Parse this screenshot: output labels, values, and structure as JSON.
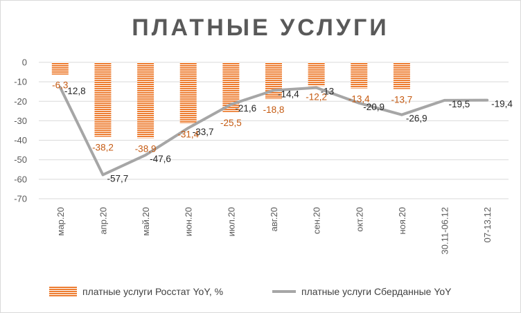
{
  "chart_data": {
    "type": "bar+line",
    "title": "ПЛАТНЫЕ УСЛУГИ",
    "categories": [
      "мар.20",
      "апр.20",
      "май.20",
      "июн.20",
      "июл.20",
      "авг.20",
      "сен.20",
      "окт.20",
      "ноя.20",
      "30.11-06.12",
      "07-13.12"
    ],
    "series": [
      {
        "name": "платные услуги Росстат YoY, %",
        "type": "bar",
        "color": "#ED7D31",
        "values": [
          -6.3,
          -38.2,
          -38.9,
          -31.4,
          -25.5,
          -18.8,
          -12.2,
          -13.4,
          -13.7,
          null,
          null
        ],
        "labels": [
          "-6,3",
          "-38,2",
          "-38,9",
          "-31,4",
          "-25,5",
          "-18,8",
          "-12,2",
          "-13,4",
          "-13,7",
          "",
          ""
        ]
      },
      {
        "name": "платные услуги Сберданные YoY",
        "type": "line",
        "color": "#A6A6A6",
        "values": [
          -12.8,
          -57.7,
          -47.6,
          -33.7,
          -21.6,
          -14.4,
          -13.0,
          -20.9,
          -26.9,
          -19.5,
          -19.4
        ],
        "labels": [
          "-12,8",
          "-57,7",
          "-47,6",
          "-33,7",
          "-21,6",
          "-14,4",
          "-13",
          "-20,9",
          "-26,9",
          "-19,5",
          "-19,4"
        ]
      }
    ],
    "yticks": [
      "0",
      "-10",
      "-20",
      "-30",
      "-40",
      "-50",
      "-60",
      "-70"
    ],
    "ylim": [
      -70,
      0
    ],
    "grid": true,
    "legend_position": "bottom"
  }
}
